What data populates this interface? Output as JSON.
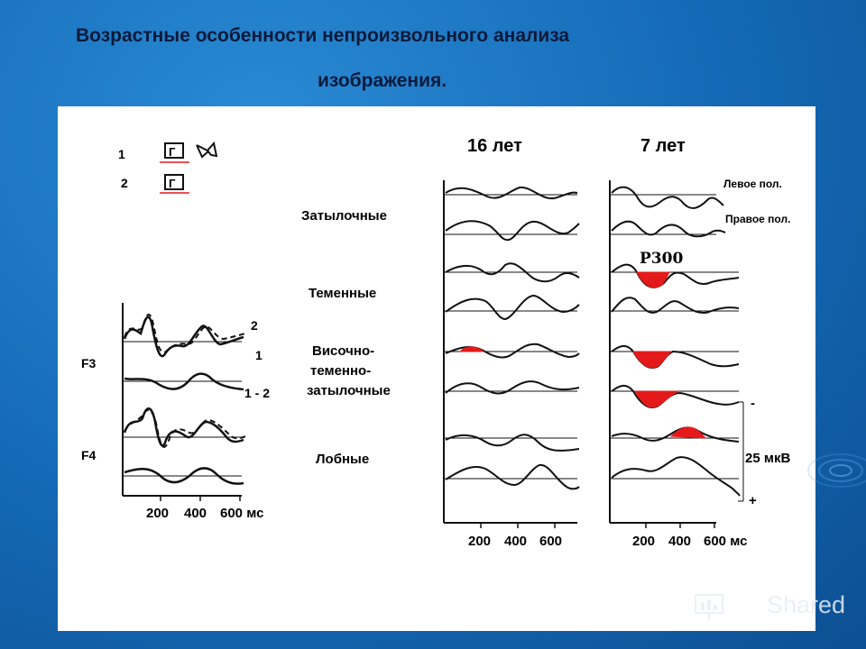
{
  "title": {
    "line1": "Возрастные особенности  непроизвольного анализа",
    "line2": "изображения."
  },
  "legend_left": {
    "row1_num": "1",
    "row2_num": "2",
    "glyph": "Г"
  },
  "left_chart": {
    "channels": [
      "F3",
      "F4"
    ],
    "curve_labels": [
      "2",
      "1",
      "1 - 2"
    ],
    "x_ticks": [
      "200",
      "400",
      "600 мс"
    ]
  },
  "column_titles": [
    "16  лет",
    "7  лет"
  ],
  "region_labels": [
    "Затылочные",
    "Теменные",
    "Височно-",
    "теменно-",
    "затылочные",
    "Лобные"
  ],
  "hemisphere_labels": [
    "Левое пол.",
    "Правое пол."
  ],
  "p300_label": "Р300",
  "mid_ticks": [
    "200",
    "400",
    "600"
  ],
  "right_ticks": [
    "200",
    "400",
    "600 мс"
  ],
  "scale": {
    "minus": "-",
    "value": "25 мкВ",
    "plus": "+"
  },
  "watermark": "Shared",
  "colors": {
    "highlight": "#e41a1a",
    "curve": "#111111"
  }
}
